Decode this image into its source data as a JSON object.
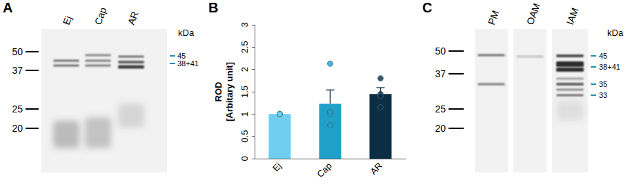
{
  "chart_data": {
    "type": "bar",
    "panel": "B",
    "categories": [
      "Ej",
      "Cap",
      "AR"
    ],
    "values": [
      1.0,
      1.23,
      1.45
    ],
    "errors": [
      0,
      0.31,
      0.14
    ],
    "points": [
      [
        1.0,
        1.0,
        1.0,
        1.0
      ],
      [
        2.13,
        1.0,
        1.05,
        0.75
      ],
      [
        1.8,
        1.45,
        1.4,
        1.15
      ]
    ],
    "colors": [
      "#6ecff0",
      "#1ea0c8",
      "#0b2e44"
    ],
    "ylabel": "ROD [Arbitary unit]",
    "ylim": [
      0,
      3
    ],
    "yticks": [
      0,
      0.5,
      1,
      1.5,
      2,
      2.5,
      3
    ],
    "grid": false
  },
  "blots": [
    {
      "panel": "A",
      "lanes": [
        "Ej",
        "Cap",
        "AR"
      ],
      "markers": [
        50,
        37,
        25,
        20
      ],
      "unit": "kDa",
      "band_labels": [
        "45",
        "38+41"
      ]
    },
    {
      "panel": "C",
      "lanes": [
        "PM",
        "OAM",
        "IAM"
      ],
      "markers": [
        50,
        37,
        25,
        20
      ],
      "unit": "kDa",
      "band_labels": [
        "45",
        "38+41",
        "35",
        "33"
      ]
    }
  ]
}
